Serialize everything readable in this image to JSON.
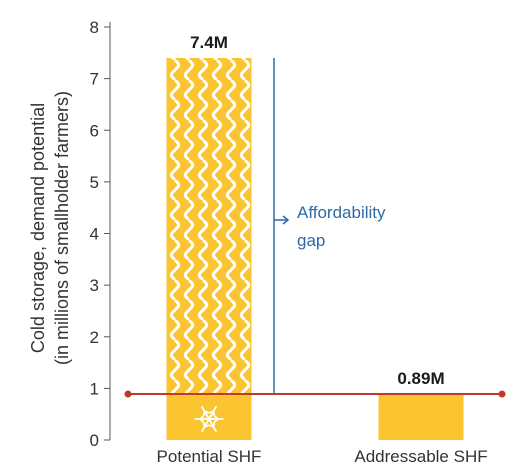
{
  "chart_data": {
    "type": "bar",
    "categories": [
      "Potential SHF",
      "Addressable SHF"
    ],
    "values": [
      7.4,
      0.89
    ],
    "data_labels": [
      "7.4M",
      "0.89M"
    ],
    "title": "",
    "xlabel": "",
    "ylabel_lines": [
      "Cold storage, demand potential",
      "(in millions of smallholder farmers)"
    ],
    "ylim": [
      0,
      8
    ],
    "yticks": [
      0,
      1,
      2,
      3,
      4,
      5,
      6,
      7,
      8
    ],
    "grid": false,
    "legend": "none",
    "reference_line": {
      "value": 0.89,
      "color": "#c0392b"
    },
    "annotation": {
      "lines": [
        "Affordability",
        "gap"
      ],
      "from": 0.89,
      "to": 7.4,
      "color": "#2d6aa8"
    },
    "colors": {
      "bar": "#fbc531",
      "pattern": "#ffffff",
      "axis": "#555555"
    },
    "icons": [
      "snowflake-icon"
    ]
  }
}
